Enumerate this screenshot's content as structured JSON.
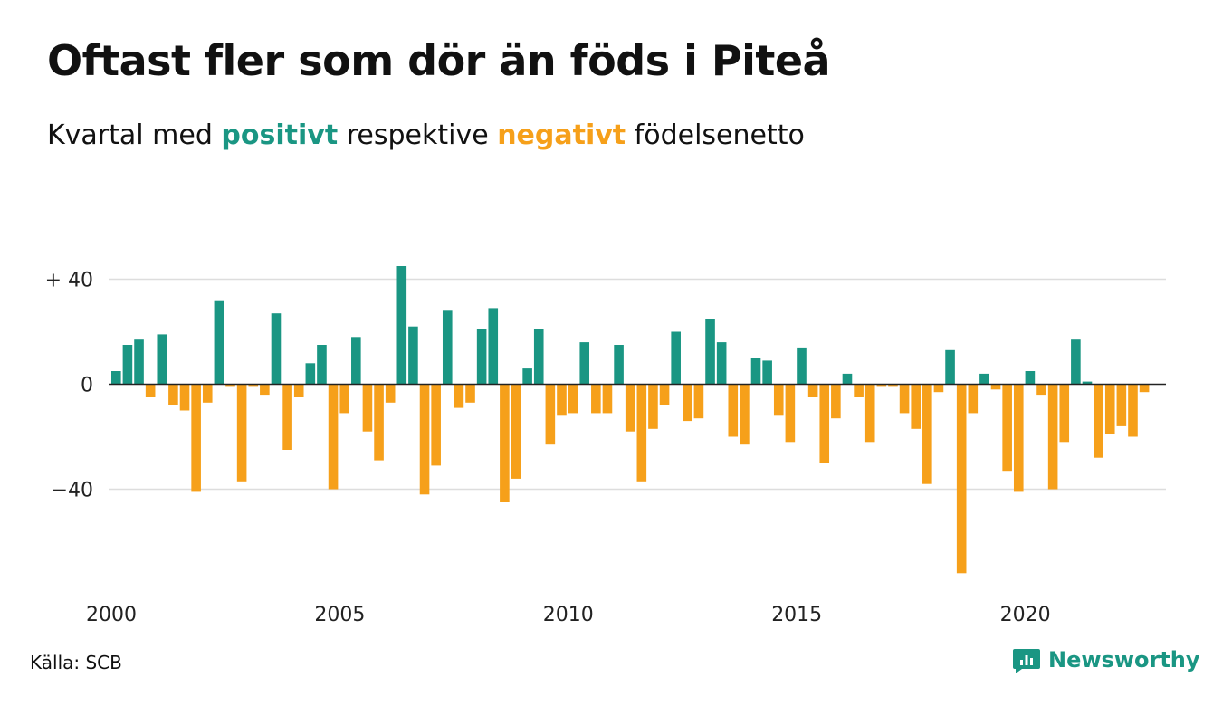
{
  "title": "Oftast fler som dör än föds i Piteå",
  "subtitle": {
    "before": "Kvartal med ",
    "positive": "positivt",
    "middle": " respektive ",
    "negative": "negativt",
    "after": " födelsenetto"
  },
  "source": "Källa: SCB",
  "brand": "Newsworthy",
  "colors": {
    "positive": "#1a9683",
    "negative": "#f6a01a",
    "grid": "#dddddd",
    "zero_line": "#222222"
  },
  "chart_data": {
    "type": "bar",
    "x_start": "2000 Q1",
    "x_ticks": [
      "2000",
      "2005",
      "2010",
      "2015",
      "2020"
    ],
    "y_ticks": [
      {
        "value": 40,
        "label": "+ 40"
      },
      {
        "value": 0,
        "label": "0"
      },
      {
        "value": -40,
        "label": "−40"
      }
    ],
    "ylim": [
      -75,
      45
    ],
    "grid": true,
    "values": [
      5,
      15,
      17,
      -5,
      19,
      -8,
      -10,
      -41,
      -7,
      32,
      -1,
      -37,
      -1,
      -4,
      27,
      -25,
      -5,
      8,
      15,
      -40,
      -11,
      18,
      -18,
      -29,
      -7,
      45,
      22,
      -42,
      -31,
      28,
      -9,
      -7,
      21,
      29,
      -45,
      -36,
      6,
      21,
      -23,
      -12,
      -11,
      16,
      -11,
      -11,
      15,
      -18,
      -37,
      -17,
      -8,
      20,
      -14,
      -13,
      25,
      16,
      -20,
      -23,
      10,
      9,
      -12,
      -22,
      14,
      -5,
      -30,
      -13,
      4,
      -5,
      -22,
      -1,
      -1,
      -11,
      -17,
      -38,
      -3,
      13,
      -72,
      -11,
      4,
      -2,
      -33,
      -41,
      5,
      -4,
      -40,
      -22,
      17,
      1,
      -28,
      -19,
      -16,
      -20,
      -3
    ]
  }
}
